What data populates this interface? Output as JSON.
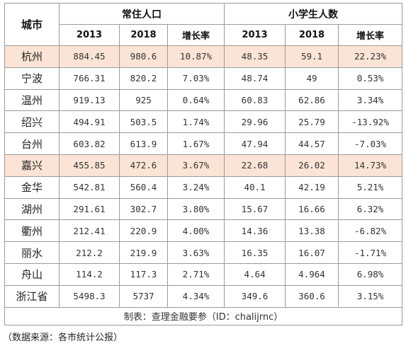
{
  "header": {
    "city": "城市",
    "group_population": "常住人口",
    "group_students": "小学生人数",
    "sub": [
      "2013",
      "2018",
      "增长率",
      "2013",
      "2018",
      "增长率"
    ]
  },
  "rows": [
    {
      "city": "杭州",
      "v": [
        "884.45",
        "980.6",
        "10.87%",
        "48.35",
        "59.1",
        "22.23%"
      ],
      "highlight": true
    },
    {
      "city": "宁波",
      "v": [
        "766.31",
        "820.2",
        "7.03%",
        "48.74",
        "49",
        "0.53%"
      ],
      "highlight": false
    },
    {
      "city": "温州",
      "v": [
        "919.13",
        "925",
        "0.64%",
        "60.83",
        "62.86",
        "3.34%"
      ],
      "highlight": false
    },
    {
      "city": "绍兴",
      "v": [
        "494.91",
        "503.5",
        "1.74%",
        "29.96",
        "25.79",
        "-13.92%"
      ],
      "highlight": false
    },
    {
      "city": "台州",
      "v": [
        "603.82",
        "613.9",
        "1.67%",
        "47.94",
        "44.57",
        "-7.03%"
      ],
      "highlight": false
    },
    {
      "city": "嘉兴",
      "v": [
        "455.85",
        "472.6",
        "3.67%",
        "22.68",
        "26.02",
        "14.73%"
      ],
      "highlight": true
    },
    {
      "city": "金华",
      "v": [
        "542.81",
        "560.4",
        "3.24%",
        "40.1",
        "42.19",
        "5.21%"
      ],
      "highlight": false
    },
    {
      "city": "湖州",
      "v": [
        "291.61",
        "302.7",
        "3.80%",
        "15.67",
        "16.66",
        "6.32%"
      ],
      "highlight": false
    },
    {
      "city": "衢州",
      "v": [
        "212.41",
        "220.9",
        "4.00%",
        "14.36",
        "13.38",
        "-6.82%"
      ],
      "highlight": false
    },
    {
      "city": "丽水",
      "v": [
        "212.2",
        "219.9",
        "3.63%",
        "16.35",
        "16.07",
        "-1.71%"
      ],
      "highlight": false
    },
    {
      "city": "舟山",
      "v": [
        "114.2",
        "117.3",
        "2.71%",
        "4.64",
        "4.964",
        "6.98%"
      ],
      "highlight": false
    },
    {
      "city": "浙江省",
      "v": [
        "5498.3",
        "5737",
        "4.34%",
        "349.6",
        "360.6",
        "3.15%"
      ],
      "highlight": false
    }
  ],
  "footer": "制表：查理金融要参（ID：chalijrnc）",
  "source": "（数据来源：各市统计公报）",
  "colors": {
    "highlight_bg": "#fbe4d5",
    "border": "#9a9a9a"
  }
}
